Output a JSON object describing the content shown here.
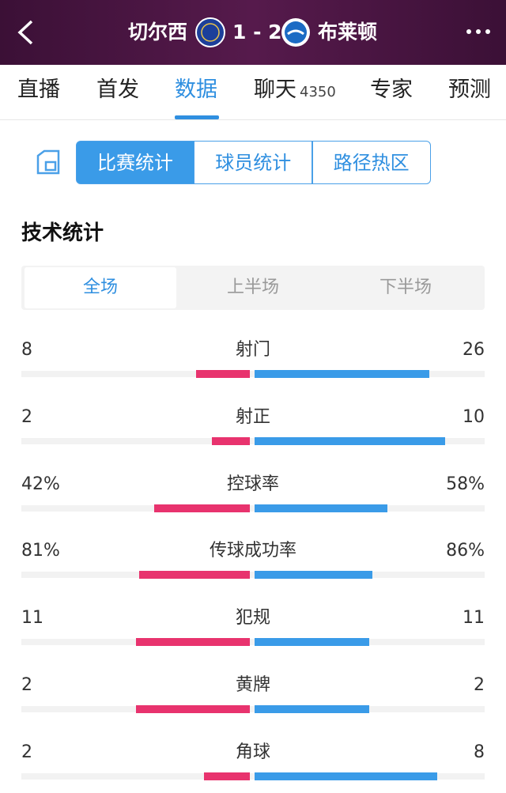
{
  "header": {
    "home": "切尔西",
    "score": "1 - 2",
    "away": "布莱顿"
  },
  "tabs": [
    {
      "label": "直播"
    },
    {
      "label": "首发"
    },
    {
      "label": "数据"
    },
    {
      "label": "聊天",
      "count": 4350
    },
    {
      "label": "专家"
    },
    {
      "label": "预测"
    }
  ],
  "segments": [
    "比赛统计",
    "球员统计",
    "路径热区"
  ],
  "section_title": "技术统计",
  "periods": [
    "全场",
    "上半场",
    "下半场"
  ],
  "stats": [
    {
      "label": "射门",
      "home": 8,
      "away": 26
    },
    {
      "label": "射正",
      "home": 2,
      "away": 10
    },
    {
      "label": "控球率",
      "home": {
        "value": 42,
        "label": "42%"
      },
      "away": {
        "value": 58,
        "label": "58%"
      }
    },
    {
      "label": "传球成功率",
      "home": {
        "value": 81,
        "label": "81%"
      },
      "away": {
        "value": 86,
        "label": "86%"
      }
    },
    {
      "label": "犯规",
      "home": 11,
      "away": 11
    },
    {
      "label": "黄牌",
      "home": 2,
      "away": 2
    },
    {
      "label": "角球",
      "home": 2,
      "away": 8
    }
  ]
}
